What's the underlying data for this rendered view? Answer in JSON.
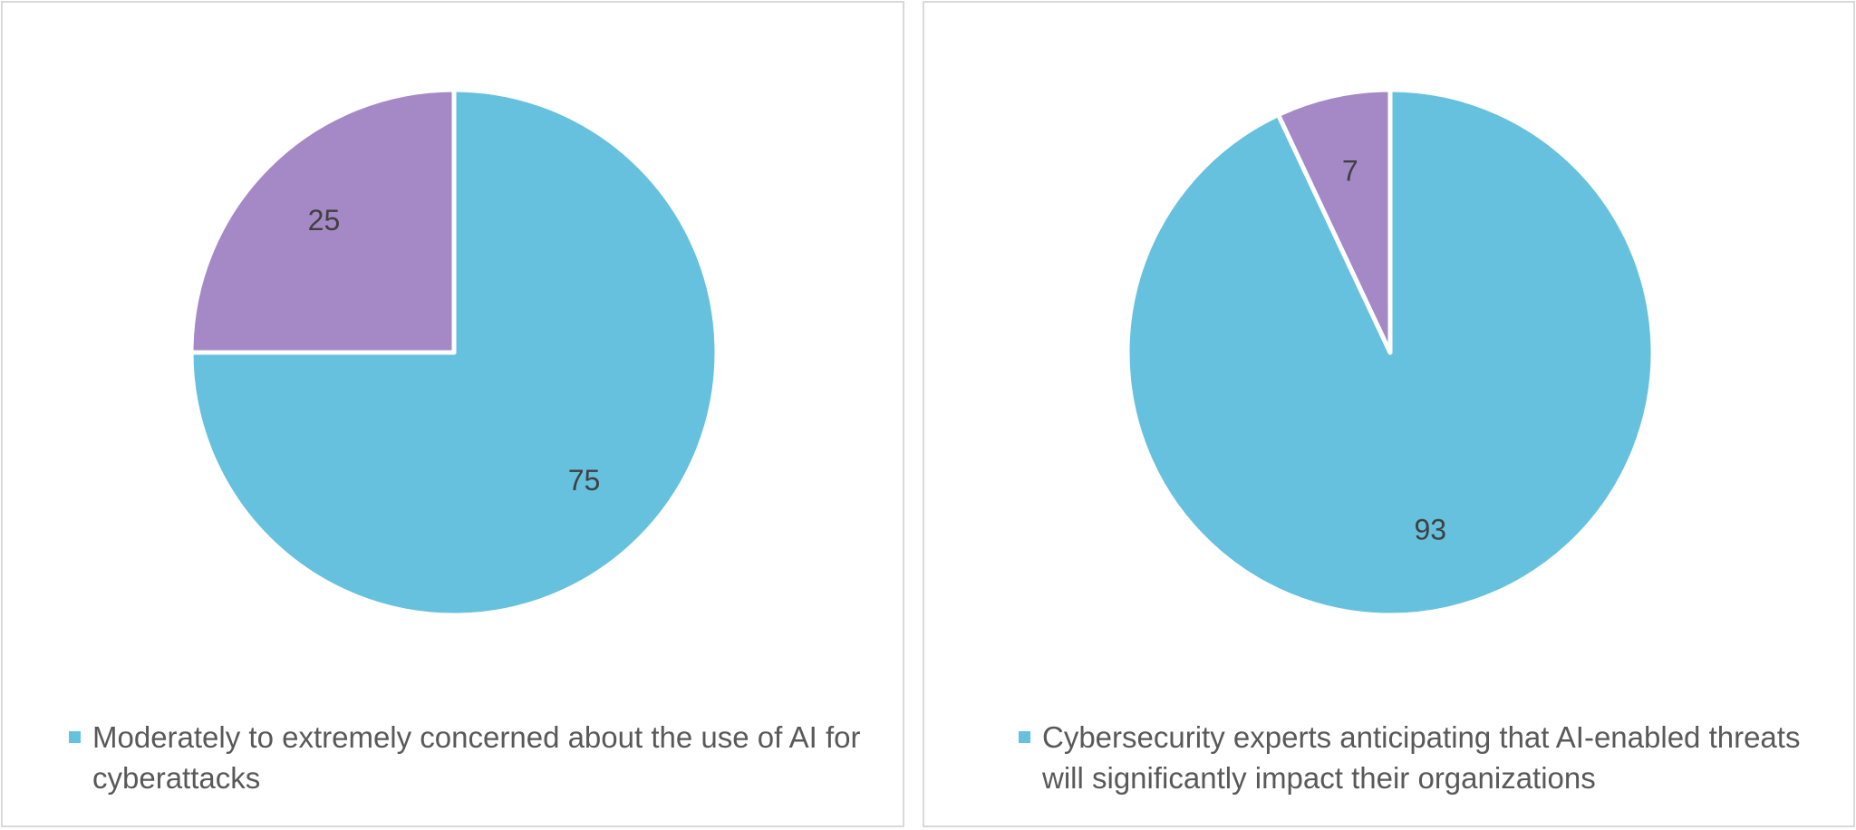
{
  "chart_data": [
    {
      "type": "pie",
      "slices": [
        {
          "value": 75,
          "label": "75",
          "color": "#66c1df"
        },
        {
          "value": 25,
          "label": "25",
          "color": "#a589c6"
        }
      ],
      "legend": [
        {
          "text": "Moderately to extremely concerned about the use of AI for cyberattacks",
          "color": "#66c1df"
        }
      ],
      "legend_position": "bottom"
    },
    {
      "type": "pie",
      "slices": [
        {
          "value": 93,
          "label": "93",
          "color": "#66c1df"
        },
        {
          "value": 7,
          "label": "7",
          "color": "#a589c6"
        }
      ],
      "legend": [
        {
          "text": "Cybersecurity experts anticipating that AI-enabled threats will significantly impact their organizations",
          "color": "#66c1df"
        }
      ],
      "legend_position": "bottom"
    }
  ]
}
